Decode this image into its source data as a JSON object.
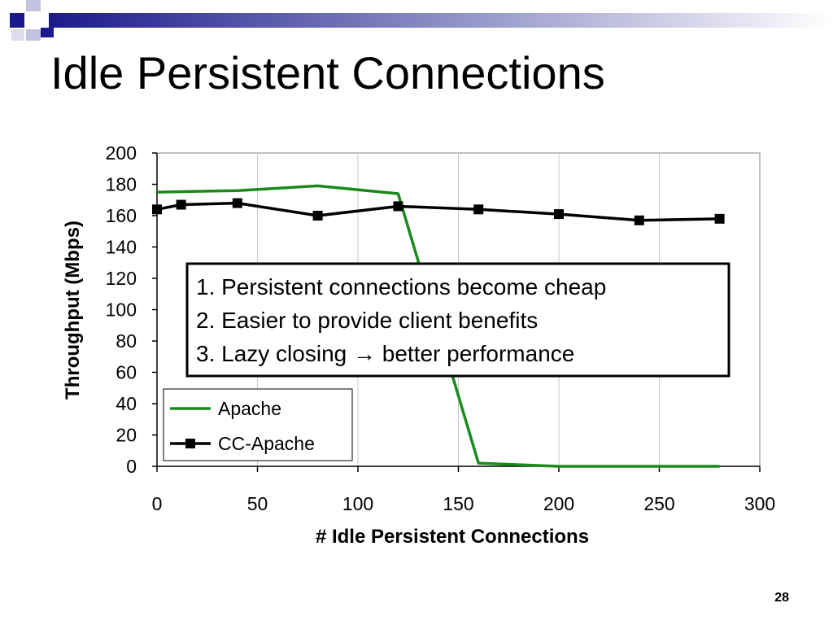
{
  "slide": {
    "title": "Idle Persistent Connections",
    "page_number": "28",
    "colors": {
      "accent": "#1a1a8c"
    }
  },
  "chart_data": {
    "type": "line",
    "xlabel": "# Idle Persistent Connections",
    "ylabel": "Throughput (Mbps)",
    "xlim": [
      0,
      300
    ],
    "ylim": [
      0,
      200
    ],
    "x_ticks": [
      0,
      50,
      100,
      150,
      200,
      250,
      300
    ],
    "y_ticks": [
      0,
      20,
      40,
      60,
      80,
      100,
      120,
      140,
      160,
      180,
      200
    ],
    "grid": "vertical",
    "legend_position": "bottom-left",
    "series": [
      {
        "name": "Apache",
        "color": "#1a8a1a",
        "marker": "none",
        "x": [
          0,
          40,
          80,
          120,
          160,
          200,
          240,
          280
        ],
        "y": [
          175,
          176,
          179,
          174,
          2,
          0,
          0,
          0
        ]
      },
      {
        "name": "CC-Apache",
        "color": "#000000",
        "marker": "square",
        "x": [
          0,
          12,
          40,
          80,
          120,
          160,
          200,
          240,
          280
        ],
        "y": [
          164,
          167,
          168,
          160,
          166,
          164,
          161,
          157,
          158
        ]
      }
    ],
    "annotation": {
      "lines": [
        "1. Persistent connections become cheap",
        "2. Easier to provide client benefits",
        "3. Lazy closing → better performance"
      ]
    }
  }
}
